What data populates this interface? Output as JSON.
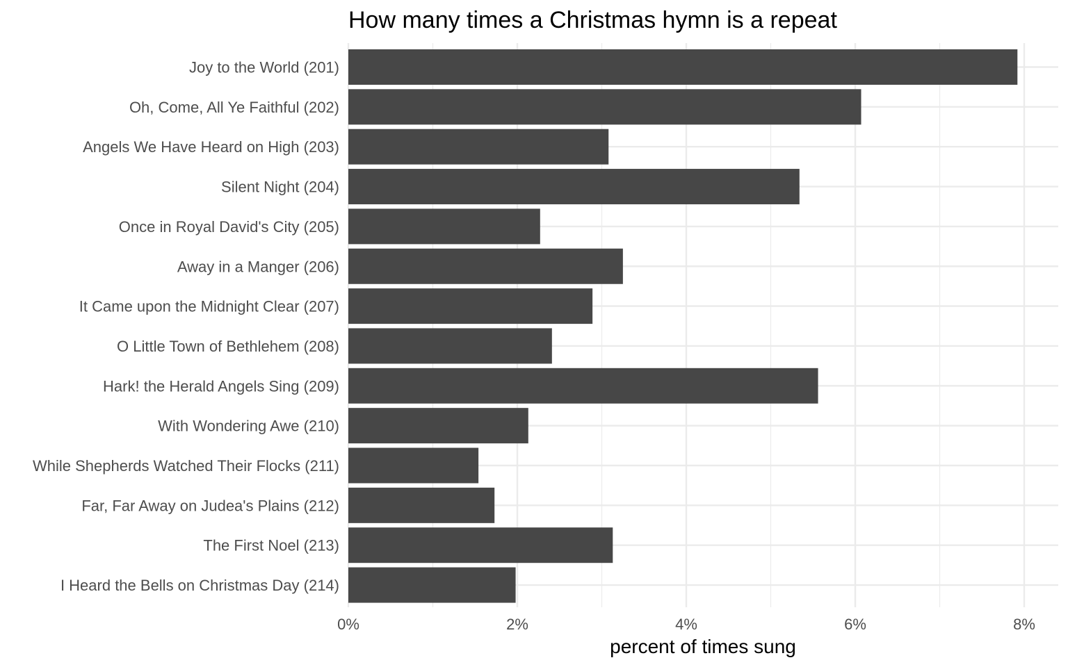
{
  "chart_data": {
    "type": "bar",
    "orientation": "horizontal",
    "title": "How many times a Christmas hymn is a repeat",
    "xlabel": "percent of times sung",
    "ylabel": "",
    "xlim": [
      0,
      8.2
    ],
    "x_ticks": [
      0,
      2,
      4,
      6,
      8
    ],
    "x_tick_labels": [
      "0%",
      "2%",
      "4%",
      "6%",
      "8%"
    ],
    "grid": true,
    "legend": "none",
    "bar_color": "#474747",
    "categories": [
      "Joy to the World (201)",
      "Oh, Come, All Ye Faithful (202)",
      "Angels We Have Heard on High (203)",
      "Silent Night (204)",
      "Once in Royal David's City (205)",
      "Away in a Manger (206)",
      "It Came upon the Midnight Clear (207)",
      "O Little Town of Bethlehem (208)",
      "Hark! the Herald Angels Sing (209)",
      "With Wondering Awe (210)",
      "While Shepherds Watched Their Flocks (211)",
      "Far, Far Away on Judea's Plains (212)",
      "The First Noel (213)",
      "I Heard the Bells on Christmas Day (214)"
    ],
    "values": [
      7.92,
      6.07,
      3.08,
      5.34,
      2.27,
      3.25,
      2.89,
      2.41,
      5.56,
      2.13,
      1.54,
      1.73,
      3.13,
      1.98
    ]
  }
}
